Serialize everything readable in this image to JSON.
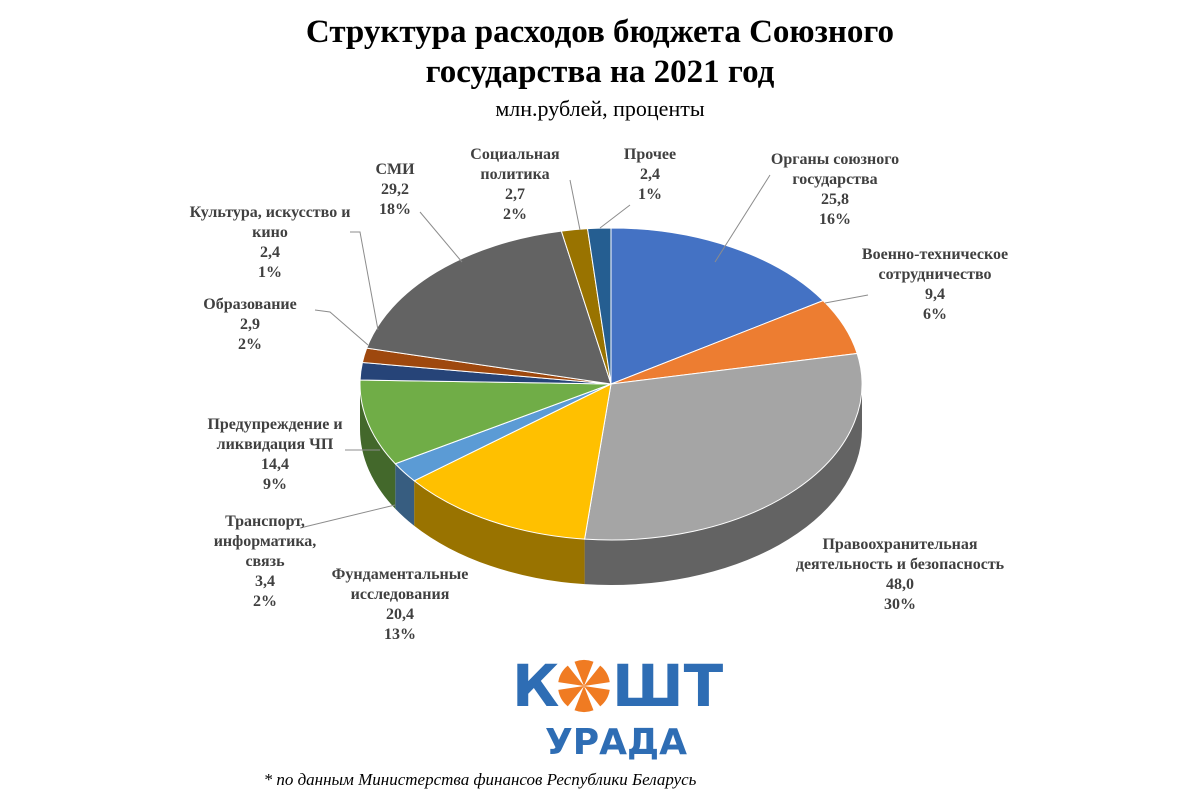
{
  "chart_data": {
    "type": "pie",
    "title": "Структура расходов бюджета Союзного государства на 2021 год",
    "subtitle": "млн.рублей, проценты",
    "categories": [
      "Органы союзного государства",
      "Военно-техническое сотрудничество",
      "Правоохранительная деятельность и безопасность",
      "Фундаментальные исследования",
      "Транспорт, информатика, связь",
      "Предупреждение и ликвидация ЧП",
      "Образование",
      "Культура, искусство и кино",
      "СМИ",
      "Социальная политика",
      "Прочее"
    ],
    "values": [
      25.8,
      9.4,
      48.0,
      20.4,
      3.4,
      14.4,
      2.9,
      2.4,
      29.2,
      2.7,
      2.4
    ],
    "value_labels": [
      "25,8",
      "9,4",
      "48,0",
      "20,4",
      "3,4",
      "14,4",
      "2,9",
      "2,4",
      "29,2",
      "2,7",
      "2,4"
    ],
    "percentages": [
      {
        "value": 16,
        "label": "16%"
      },
      {
        "value": 6,
        "label": "6%"
      },
      {
        "value": 30,
        "label": "30%"
      },
      {
        "value": 13,
        "label": "13%"
      },
      {
        "value": 2,
        "label": "2%"
      },
      {
        "value": 9,
        "label": "9%"
      },
      {
        "value": 2,
        "label": "2%"
      },
      {
        "value": 1,
        "label": "1%"
      },
      {
        "value": 18,
        "label": "18%"
      },
      {
        "value": 2,
        "label": "2%"
      },
      {
        "value": 1,
        "label": "1%"
      }
    ],
    "colors": [
      "#4472c4",
      "#ed7d31",
      "#a5a5a5",
      "#ffc000",
      "#5b9bd5",
      "#70ad47",
      "#264478",
      "#9e480e",
      "#636363",
      "#997300",
      "#255e91"
    ],
    "footnote": "* по данным Министерства финансов Республики Беларусь"
  },
  "logo": {
    "left": "К",
    "right": "ШТ",
    "bottom": "УРАДА"
  }
}
